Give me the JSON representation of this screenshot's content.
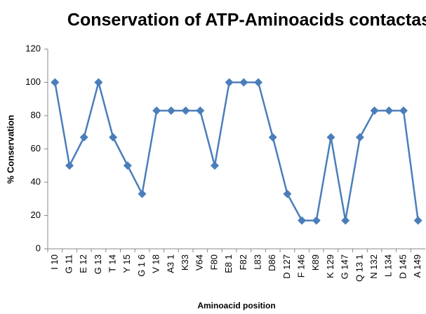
{
  "chart_data": {
    "type": "line",
    "title": "Conservation of ATP-Aminoacids contactas",
    "x_label": "Aminoacid position",
    "y_label": "% Conservation",
    "categories": [
      "I 10",
      "G 11",
      "E 12",
      "G 13",
      "T 14",
      "Y 15",
      "G 1 6",
      "V 18",
      "A3 1",
      "K33",
      "V64",
      "F80",
      "E8 1",
      "F82",
      "L83",
      "D86",
      "D 127",
      "F 146",
      "K89",
      "K 129",
      "G 147",
      "Q 13 1",
      "N 132",
      "L 134",
      "D 145",
      "A 149"
    ],
    "series": [
      {
        "name": "% Conservation",
        "color": "#4a7ebb",
        "values": [
          100,
          50,
          67,
          100,
          67,
          50,
          33,
          83,
          83,
          83,
          83,
          50,
          100,
          100,
          100,
          67,
          33,
          17,
          17,
          67,
          17,
          67,
          83,
          83,
          83,
          17
        ]
      }
    ],
    "ylim": [
      0,
      120
    ],
    "yticks": [
      0,
      20,
      40,
      60,
      80,
      100,
      120
    ],
    "grid": false,
    "legend": false
  }
}
